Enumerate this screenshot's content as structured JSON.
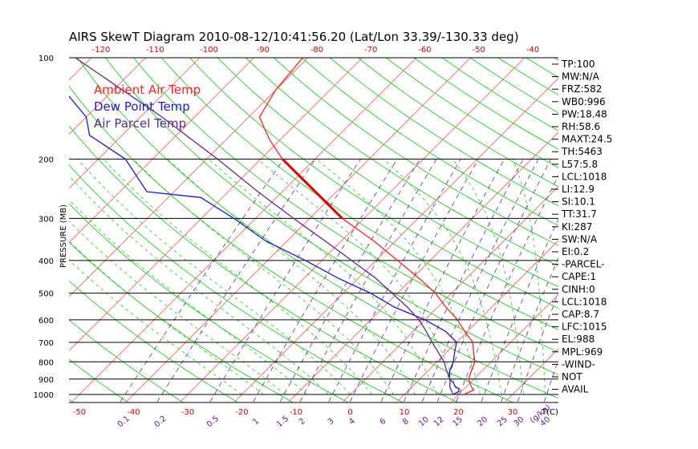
{
  "chart_data": {
    "type": "line",
    "title": "AIRS SkewT Diagram 2010-08-12/10:41:56.20 (Lat/Lon 33.39/-130.33 deg)",
    "ylabel": "PRESSURE (MB)",
    "xlabel_right": "T(C)",
    "mixing_ratio_unit": "(g/kg)",
    "pressure_ticks": [
      1000,
      900,
      800,
      700,
      600,
      500,
      400,
      300,
      200,
      100
    ],
    "bottom_temp_ticks": [
      -50,
      -40,
      -30,
      -20,
      -10,
      0,
      10,
      20,
      30
    ],
    "top_temp_ticks": [
      -120,
      -110,
      -100,
      -90,
      -80,
      -70,
      -60,
      -50,
      -40
    ],
    "mixing_ratio_ticks": [
      "0.1",
      "0.2",
      "0.5",
      "1",
      "1.5",
      "2",
      "3",
      "4",
      "6",
      "8",
      "10",
      "12",
      "15",
      "20",
      "25",
      "30",
      "40"
    ],
    "legend": [
      {
        "name": "Ambient Air Temp",
        "color": "#ff2020"
      },
      {
        "name": "Dew Point Temp",
        "color": "#1a1acc"
      },
      {
        "name": "Air Parcel Temp",
        "color": "#5a2a8a"
      }
    ],
    "series": [
      {
        "name": "Ambient Air Temp",
        "color": "#ff2020",
        "p": [
          1000,
          970,
          950,
          900,
          850,
          800,
          750,
          700,
          650,
          600,
          550,
          500,
          450,
          400,
          350,
          300,
          250,
          200,
          175,
          150,
          125,
          100
        ],
        "t": [
          21,
          22,
          21,
          19,
          18,
          17,
          15,
          13,
          9.5,
          6,
          1.5,
          -3,
          -9,
          -16,
          -24,
          -34,
          -44,
          -56,
          -62,
          -68,
          -70,
          -71
        ]
      },
      {
        "name": "Dew Point Temp",
        "color": "#1a1acc",
        "p": [
          1000,
          980,
          960,
          950,
          925,
          900,
          850,
          800,
          750,
          700,
          650,
          600,
          550,
          500,
          450,
          400,
          350,
          300,
          260,
          250,
          200,
          170,
          150,
          125,
          100
        ],
        "t": [
          19,
          19.5,
          19,
          18,
          17,
          15.5,
          14,
          13,
          11.5,
          10,
          6,
          0,
          -8,
          -15,
          -24,
          -33,
          -44,
          -54,
          -64,
          -75,
          -85,
          -96,
          -100,
          -109,
          -117
        ]
      },
      {
        "name": "Air Parcel Temp",
        "color": "#5a2a8a",
        "p": [
          1000,
          950,
          900,
          850,
          800,
          750,
          700,
          650,
          600,
          550,
          500,
          450,
          400,
          350,
          300,
          250,
          200,
          150,
          100
        ],
        "t": [
          19,
          17,
          15.6,
          13.4,
          11.3,
          8.5,
          5.5,
          2.4,
          -1.1,
          -5.6,
          -11,
          -17,
          -24.5,
          -33,
          -43,
          -54.5,
          -68,
          -86,
          -113
        ]
      }
    ],
    "ylim": [
      1000,
      100
    ],
    "xlim_bottom": [
      -52,
      40
    ]
  },
  "indices": [
    "TP:100",
    "MW:N/A",
    "FRZ:582",
    "WB0:996",
    "PW:18.48",
    "RH:58.6",
    "MAXT:24.5",
    "TH:5463",
    "L57:5.8",
    "LCL:1018",
    "LI:12.9",
    "SI:10.1",
    "TT:31.7",
    "KI:287",
    "SW:N/A",
    "EI:0.2",
    "-PARCEL-",
    "CAPE:1",
    "CINH:0",
    "LCL:1018",
    "CAP:8.7",
    "LFC:1015",
    "EL:988",
    "MPL:969",
    "-WIND-",
    "NOT",
    "AVAIL"
  ],
  "colors": {
    "isotherm": "#ff5555",
    "dry_adiabat": "#22cc22",
    "moist_adiabat": "#22cc22",
    "mixing_ratio": "#5a2a9a",
    "isobar": "#000000"
  }
}
